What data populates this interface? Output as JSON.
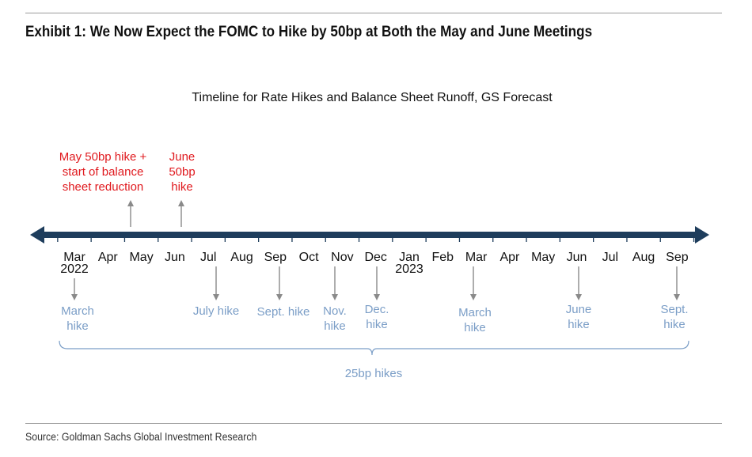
{
  "exhibit_title": "Exhibit 1: We Now Expect the FOMC to Hike by 50bp at Both the May and June Meetings",
  "chart_title": "Timeline for Rate Hikes and Balance Sheet Runoff, GS Forecast",
  "source": "Source: Goldman Sachs Global Investment Research",
  "colors": {
    "axis": "#1e3d5c",
    "red": "#e0191e",
    "blue": "#7b9ec7",
    "arrow": "#8a8a8a"
  },
  "months": [
    {
      "label": "Mar",
      "year": "2022"
    },
    {
      "label": "Apr",
      "year": ""
    },
    {
      "label": "May",
      "year": ""
    },
    {
      "label": "Jun",
      "year": ""
    },
    {
      "label": "Jul",
      "year": ""
    },
    {
      "label": "Aug",
      "year": ""
    },
    {
      "label": "Sep",
      "year": ""
    },
    {
      "label": "Oct",
      "year": ""
    },
    {
      "label": "Nov",
      "year": ""
    },
    {
      "label": "Dec",
      "year": ""
    },
    {
      "label": "Jan",
      "year": "2023"
    },
    {
      "label": "Feb",
      "year": ""
    },
    {
      "label": "Mar",
      "year": ""
    },
    {
      "label": "Apr",
      "year": ""
    },
    {
      "label": "May",
      "year": ""
    },
    {
      "label": "Jun",
      "year": ""
    },
    {
      "label": "Jul",
      "year": ""
    },
    {
      "label": "Aug",
      "year": ""
    },
    {
      "label": "Sep",
      "year": ""
    }
  ],
  "upper_events": [
    {
      "month_index": 2,
      "lines": [
        "May 50bp hike +",
        "start of balance",
        "sheet reduction"
      ]
    },
    {
      "month_index": 3,
      "lines": [
        "June",
        "50bp",
        "hike"
      ]
    }
  ],
  "lower_events": [
    {
      "month_index": 0,
      "lines": [
        "March",
        "hike"
      ]
    },
    {
      "month_index": 4,
      "lines": [
        "July hike"
      ]
    },
    {
      "month_index": 6,
      "lines": [
        "Sept. hike"
      ]
    },
    {
      "month_index": 8,
      "lines": [
        "Nov.",
        "hike"
      ]
    },
    {
      "month_index": 9,
      "lines": [
        "Dec.",
        "hike"
      ]
    },
    {
      "month_index": 12,
      "lines": [
        "March",
        "hike"
      ]
    },
    {
      "month_index": 15,
      "lines": [
        "June",
        "hike"
      ]
    },
    {
      "month_index": 18,
      "lines": [
        "Sept.",
        "hike"
      ]
    }
  ],
  "bracket_label": "25bp hikes"
}
